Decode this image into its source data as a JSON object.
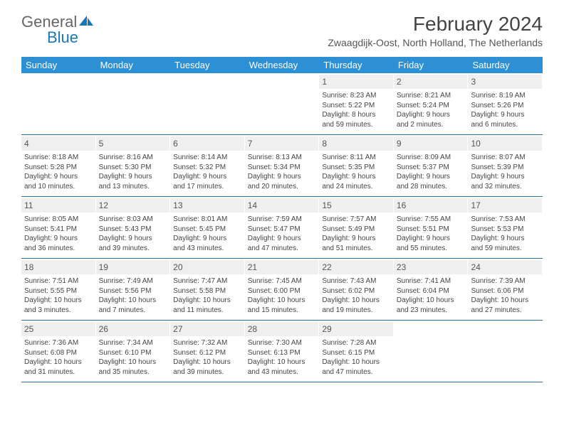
{
  "brand": {
    "part1": "General",
    "part2": "Blue"
  },
  "title": "February 2024",
  "location": "Zwaagdijk-Oost, North Holland, The Netherlands",
  "colors": {
    "header_bg": "#2d8fd4",
    "brand_blue": "#1976b8",
    "daynum_bg": "#efefef",
    "week_border": "#2d6fa0"
  },
  "day_headers": [
    "Sunday",
    "Monday",
    "Tuesday",
    "Wednesday",
    "Thursday",
    "Friday",
    "Saturday"
  ],
  "weeks": [
    [
      {
        "empty": true
      },
      {
        "empty": true
      },
      {
        "empty": true
      },
      {
        "empty": true
      },
      {
        "day": "1",
        "sunrise": "Sunrise: 8:23 AM",
        "sunset": "Sunset: 5:22 PM",
        "dl1": "Daylight: 8 hours",
        "dl2": "and 59 minutes."
      },
      {
        "day": "2",
        "sunrise": "Sunrise: 8:21 AM",
        "sunset": "Sunset: 5:24 PM",
        "dl1": "Daylight: 9 hours",
        "dl2": "and 2 minutes."
      },
      {
        "day": "3",
        "sunrise": "Sunrise: 8:19 AM",
        "sunset": "Sunset: 5:26 PM",
        "dl1": "Daylight: 9 hours",
        "dl2": "and 6 minutes."
      }
    ],
    [
      {
        "day": "4",
        "sunrise": "Sunrise: 8:18 AM",
        "sunset": "Sunset: 5:28 PM",
        "dl1": "Daylight: 9 hours",
        "dl2": "and 10 minutes."
      },
      {
        "day": "5",
        "sunrise": "Sunrise: 8:16 AM",
        "sunset": "Sunset: 5:30 PM",
        "dl1": "Daylight: 9 hours",
        "dl2": "and 13 minutes."
      },
      {
        "day": "6",
        "sunrise": "Sunrise: 8:14 AM",
        "sunset": "Sunset: 5:32 PM",
        "dl1": "Daylight: 9 hours",
        "dl2": "and 17 minutes."
      },
      {
        "day": "7",
        "sunrise": "Sunrise: 8:13 AM",
        "sunset": "Sunset: 5:34 PM",
        "dl1": "Daylight: 9 hours",
        "dl2": "and 20 minutes."
      },
      {
        "day": "8",
        "sunrise": "Sunrise: 8:11 AM",
        "sunset": "Sunset: 5:35 PM",
        "dl1": "Daylight: 9 hours",
        "dl2": "and 24 minutes."
      },
      {
        "day": "9",
        "sunrise": "Sunrise: 8:09 AM",
        "sunset": "Sunset: 5:37 PM",
        "dl1": "Daylight: 9 hours",
        "dl2": "and 28 minutes."
      },
      {
        "day": "10",
        "sunrise": "Sunrise: 8:07 AM",
        "sunset": "Sunset: 5:39 PM",
        "dl1": "Daylight: 9 hours",
        "dl2": "and 32 minutes."
      }
    ],
    [
      {
        "day": "11",
        "sunrise": "Sunrise: 8:05 AM",
        "sunset": "Sunset: 5:41 PM",
        "dl1": "Daylight: 9 hours",
        "dl2": "and 36 minutes."
      },
      {
        "day": "12",
        "sunrise": "Sunrise: 8:03 AM",
        "sunset": "Sunset: 5:43 PM",
        "dl1": "Daylight: 9 hours",
        "dl2": "and 39 minutes."
      },
      {
        "day": "13",
        "sunrise": "Sunrise: 8:01 AM",
        "sunset": "Sunset: 5:45 PM",
        "dl1": "Daylight: 9 hours",
        "dl2": "and 43 minutes."
      },
      {
        "day": "14",
        "sunrise": "Sunrise: 7:59 AM",
        "sunset": "Sunset: 5:47 PM",
        "dl1": "Daylight: 9 hours",
        "dl2": "and 47 minutes."
      },
      {
        "day": "15",
        "sunrise": "Sunrise: 7:57 AM",
        "sunset": "Sunset: 5:49 PM",
        "dl1": "Daylight: 9 hours",
        "dl2": "and 51 minutes."
      },
      {
        "day": "16",
        "sunrise": "Sunrise: 7:55 AM",
        "sunset": "Sunset: 5:51 PM",
        "dl1": "Daylight: 9 hours",
        "dl2": "and 55 minutes."
      },
      {
        "day": "17",
        "sunrise": "Sunrise: 7:53 AM",
        "sunset": "Sunset: 5:53 PM",
        "dl1": "Daylight: 9 hours",
        "dl2": "and 59 minutes."
      }
    ],
    [
      {
        "day": "18",
        "sunrise": "Sunrise: 7:51 AM",
        "sunset": "Sunset: 5:55 PM",
        "dl1": "Daylight: 10 hours",
        "dl2": "and 3 minutes."
      },
      {
        "day": "19",
        "sunrise": "Sunrise: 7:49 AM",
        "sunset": "Sunset: 5:56 PM",
        "dl1": "Daylight: 10 hours",
        "dl2": "and 7 minutes."
      },
      {
        "day": "20",
        "sunrise": "Sunrise: 7:47 AM",
        "sunset": "Sunset: 5:58 PM",
        "dl1": "Daylight: 10 hours",
        "dl2": "and 11 minutes."
      },
      {
        "day": "21",
        "sunrise": "Sunrise: 7:45 AM",
        "sunset": "Sunset: 6:00 PM",
        "dl1": "Daylight: 10 hours",
        "dl2": "and 15 minutes."
      },
      {
        "day": "22",
        "sunrise": "Sunrise: 7:43 AM",
        "sunset": "Sunset: 6:02 PM",
        "dl1": "Daylight: 10 hours",
        "dl2": "and 19 minutes."
      },
      {
        "day": "23",
        "sunrise": "Sunrise: 7:41 AM",
        "sunset": "Sunset: 6:04 PM",
        "dl1": "Daylight: 10 hours",
        "dl2": "and 23 minutes."
      },
      {
        "day": "24",
        "sunrise": "Sunrise: 7:39 AM",
        "sunset": "Sunset: 6:06 PM",
        "dl1": "Daylight: 10 hours",
        "dl2": "and 27 minutes."
      }
    ],
    [
      {
        "day": "25",
        "sunrise": "Sunrise: 7:36 AM",
        "sunset": "Sunset: 6:08 PM",
        "dl1": "Daylight: 10 hours",
        "dl2": "and 31 minutes."
      },
      {
        "day": "26",
        "sunrise": "Sunrise: 7:34 AM",
        "sunset": "Sunset: 6:10 PM",
        "dl1": "Daylight: 10 hours",
        "dl2": "and 35 minutes."
      },
      {
        "day": "27",
        "sunrise": "Sunrise: 7:32 AM",
        "sunset": "Sunset: 6:12 PM",
        "dl1": "Daylight: 10 hours",
        "dl2": "and 39 minutes."
      },
      {
        "day": "28",
        "sunrise": "Sunrise: 7:30 AM",
        "sunset": "Sunset: 6:13 PM",
        "dl1": "Daylight: 10 hours",
        "dl2": "and 43 minutes."
      },
      {
        "day": "29",
        "sunrise": "Sunrise: 7:28 AM",
        "sunset": "Sunset: 6:15 PM",
        "dl1": "Daylight: 10 hours",
        "dl2": "and 47 minutes."
      },
      {
        "empty": true
      },
      {
        "empty": true
      }
    ]
  ]
}
